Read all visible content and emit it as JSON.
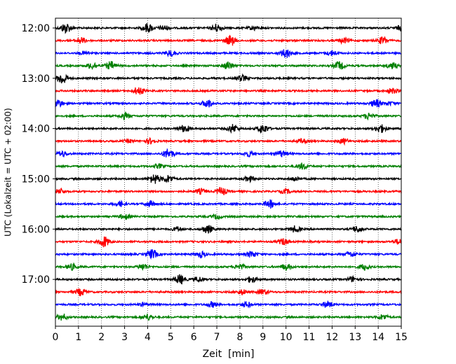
{
  "chart_data": {
    "type": "line",
    "title": "",
    "xlabel": "Zeit  [min]",
    "ylabel": "UTC (Lokalzeit = UTC + 02:00)",
    "xlim": [
      0,
      15
    ],
    "x_ticks": [
      0,
      1,
      2,
      3,
      4,
      5,
      6,
      7,
      8,
      9,
      10,
      11,
      12,
      13,
      14,
      15
    ],
    "x_tick_labels": [
      "0",
      "1",
      "2",
      "3",
      "4",
      "5",
      "6",
      "7",
      "8",
      "9",
      "10",
      "11",
      "12",
      "13",
      "14",
      "15"
    ],
    "y_tick_labels": [
      "12:00",
      "13:00",
      "14:00",
      "15:00",
      "16:00",
      "17:00"
    ],
    "grid": "vertical dotted at each minute",
    "color_cycle": [
      "#000000",
      "#ff0000",
      "#0000ff",
      "#008000"
    ],
    "trace_interval_minutes": 15,
    "traces": [
      {
        "start": "12:00",
        "color": "#000000",
        "events": [
          [
            0.45,
            1.0
          ],
          [
            4.0,
            0.9
          ],
          [
            4.7,
            0.5
          ],
          [
            7.0,
            0.8
          ],
          [
            8.6,
            0.4
          ],
          [
            15.0,
            0.5
          ]
        ]
      },
      {
        "start": "12:15",
        "color": "#ff0000",
        "events": [
          [
            1.1,
            0.6
          ],
          [
            7.6,
            1.0
          ],
          [
            12.5,
            0.5
          ],
          [
            14.2,
            0.7
          ]
        ]
      },
      {
        "start": "12:30",
        "color": "#0000ff",
        "events": [
          [
            1.3,
            0.3
          ],
          [
            5.0,
            0.6
          ],
          [
            10.0,
            0.9
          ],
          [
            12.0,
            0.5
          ]
        ]
      },
      {
        "start": "12:45",
        "color": "#008000",
        "events": [
          [
            1.6,
            0.7
          ],
          [
            2.4,
            0.8
          ],
          [
            7.5,
            0.8
          ],
          [
            12.3,
            0.8
          ],
          [
            14.6,
            0.6
          ]
        ]
      },
      {
        "start": "13:00",
        "color": "#000000",
        "events": [
          [
            0.3,
            1.2
          ],
          [
            8.1,
            0.6
          ]
        ]
      },
      {
        "start": "13:15",
        "color": "#ff0000",
        "events": [
          [
            3.6,
            0.8
          ],
          [
            14.6,
            0.5
          ]
        ]
      },
      {
        "start": "13:30",
        "color": "#0000ff",
        "events": [
          [
            0.1,
            0.8
          ],
          [
            6.6,
            0.8
          ],
          [
            13.9,
            0.8
          ],
          [
            14.5,
            0.3
          ]
        ]
      },
      {
        "start": "13:45",
        "color": "#008000",
        "events": [
          [
            3.0,
            0.6
          ],
          [
            13.6,
            0.6
          ]
        ]
      },
      {
        "start": "14:00",
        "color": "#000000",
        "events": [
          [
            5.6,
            0.7
          ],
          [
            7.7,
            0.8
          ],
          [
            9.0,
            0.9
          ],
          [
            14.1,
            0.8
          ]
        ]
      },
      {
        "start": "14:15",
        "color": "#ff0000",
        "events": [
          [
            3.2,
            0.3
          ],
          [
            4.1,
            0.5
          ],
          [
            10.7,
            0.4
          ],
          [
            12.5,
            0.5
          ]
        ]
      },
      {
        "start": "14:30",
        "color": "#0000ff",
        "events": [
          [
            0.3,
            0.5
          ],
          [
            4.9,
            1.0
          ],
          [
            8.4,
            0.5
          ],
          [
            9.8,
            0.6
          ]
        ]
      },
      {
        "start": "14:45",
        "color": "#008000",
        "events": [
          [
            4.5,
            0.4
          ],
          [
            10.7,
            0.6
          ]
        ]
      },
      {
        "start": "15:00",
        "color": "#000000",
        "events": [
          [
            4.3,
            1.0
          ],
          [
            4.9,
            0.7
          ],
          [
            8.4,
            0.5
          ],
          [
            10.4,
            0.4
          ]
        ]
      },
      {
        "start": "15:15",
        "color": "#ff0000",
        "events": [
          [
            0.2,
            0.5
          ],
          [
            6.3,
            0.5
          ],
          [
            7.2,
            0.8
          ],
          [
            10.0,
            0.4
          ]
        ]
      },
      {
        "start": "15:30",
        "color": "#0000ff",
        "events": [
          [
            2.8,
            0.5
          ],
          [
            9.3,
            0.8
          ],
          [
            4.1,
            0.5
          ]
        ]
      },
      {
        "start": "15:45",
        "color": "#008000",
        "events": [
          [
            3.0,
            0.5
          ],
          [
            7.0,
            0.4
          ]
        ]
      },
      {
        "start": "16:00",
        "color": "#000000",
        "events": [
          [
            5.3,
            0.4
          ],
          [
            6.6,
            0.8
          ],
          [
            10.4,
            0.6
          ],
          [
            13.1,
            0.6
          ]
        ]
      },
      {
        "start": "16:15",
        "color": "#ff0000",
        "events": [
          [
            2.1,
            1.1
          ],
          [
            9.9,
            0.6
          ],
          [
            14.9,
            0.5
          ]
        ]
      },
      {
        "start": "16:30",
        "color": "#0000ff",
        "events": [
          [
            4.2,
            0.9
          ],
          [
            6.3,
            0.6
          ],
          [
            8.5,
            0.6
          ],
          [
            12.8,
            0.5
          ]
        ]
      },
      {
        "start": "16:45",
        "color": "#008000",
        "events": [
          [
            0.7,
            0.6
          ],
          [
            3.8,
            0.6
          ],
          [
            8.0,
            0.5
          ],
          [
            10.0,
            0.6
          ],
          [
            13.4,
            0.6
          ]
        ]
      },
      {
        "start": "17:00",
        "color": "#000000",
        "events": [
          [
            5.4,
            0.9
          ],
          [
            6.2,
            0.5
          ],
          [
            8.5,
            0.6
          ],
          [
            12.9,
            0.5
          ]
        ]
      },
      {
        "start": "17:15",
        "color": "#ff0000",
        "events": [
          [
            1.1,
            0.7
          ],
          [
            8.1,
            0.5
          ],
          [
            9.0,
            0.5
          ]
        ]
      },
      {
        "start": "17:30",
        "color": "#0000ff",
        "events": [
          [
            3.8,
            0.3
          ],
          [
            6.8,
            0.5
          ],
          [
            8.3,
            0.5
          ],
          [
            11.8,
            0.6
          ]
        ]
      },
      {
        "start": "17:45",
        "color": "#008000",
        "events": [
          [
            0.3,
            0.6
          ],
          [
            4.0,
            0.6
          ],
          [
            14.2,
            0.5
          ]
        ]
      }
    ]
  }
}
